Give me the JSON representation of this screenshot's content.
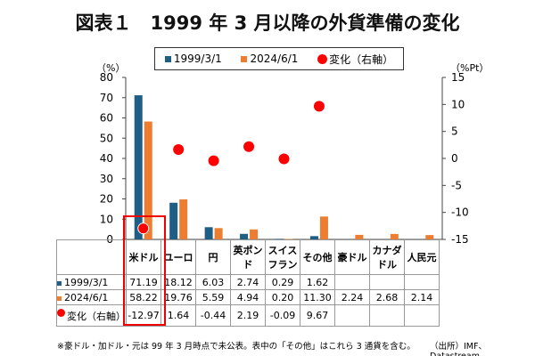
{
  "title": "図表１　1999 年 3 月以降の外貨準備の変化",
  "colors": {
    "s1": "#1f5f85",
    "s2": "#ed7d31",
    "change": "#ff0000",
    "highlight": "#e00000"
  },
  "legend": {
    "s1": "1999/3/1",
    "s2": "2024/6/1",
    "change": "変化（右軸）"
  },
  "chart_data": {
    "type": "bar",
    "categories": [
      "米ドル",
      "ユーロ",
      "円",
      "英ポンド",
      "スイスフラン",
      "その他",
      "豪ドル",
      "カナダドル",
      "人民元"
    ],
    "category_labels": [
      "米ドル",
      "ユーロ",
      "円",
      "英ポン\nド",
      "スイス\nフラン",
      "その他",
      "豪ドル",
      "カナダ\nドル",
      "人民元"
    ],
    "series": [
      {
        "name": "1999/3/1",
        "values": [
          71.19,
          18.12,
          6.03,
          2.74,
          0.29,
          1.62,
          null,
          null,
          null
        ]
      },
      {
        "name": "2024/6/1",
        "values": [
          58.22,
          19.76,
          5.59,
          4.94,
          0.2,
          11.3,
          2.24,
          2.68,
          2.14
        ]
      },
      {
        "name": "変化（右軸）",
        "type": "scatter",
        "axis": "right",
        "values": [
          -12.97,
          1.64,
          -0.44,
          2.19,
          -0.09,
          9.67,
          null,
          null,
          null
        ]
      }
    ],
    "table_text": [
      [
        "71.19",
        "18.12",
        "6.03",
        "2.74",
        "0.29",
        "1.62",
        "",
        "",
        ""
      ],
      [
        "58.22",
        "19.76",
        "5.59",
        "4.94",
        "0.20",
        "11.30",
        "2.24",
        "2.68",
        "2.14"
      ],
      [
        "-12.97",
        "1.64",
        "-0.44",
        "2.19",
        "-0.09",
        "9.67",
        "",
        "",
        ""
      ]
    ],
    "ylabel_left": "（%）",
    "ylabel_right": "（%Pt）",
    "ylim_left": [
      0,
      80
    ],
    "ylim_right": [
      -15,
      15
    ],
    "yticks_left": [
      "0",
      "10",
      "20",
      "30",
      "40",
      "50",
      "60",
      "70",
      "80"
    ],
    "yticks_right": [
      "-15",
      "-10",
      "-5",
      "0",
      "5",
      "10",
      "15"
    ],
    "highlight": "米ドル"
  },
  "note": "※豪ドル・加ドル・元は 99 年 3 月時点で未公表。表中の「その他」はこれら 3 通貨を含む。",
  "source": "（出所）IMF、Datastream"
}
